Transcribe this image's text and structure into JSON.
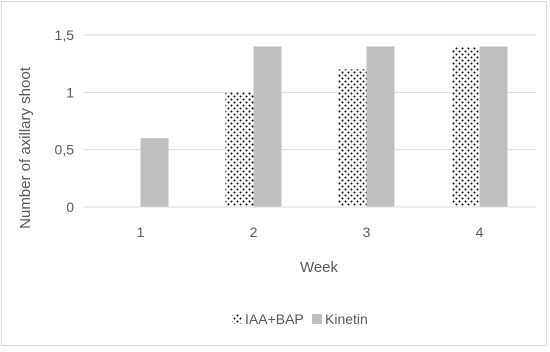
{
  "chart_data": {
    "type": "bar",
    "categories": [
      "1",
      "2",
      "3",
      "4"
    ],
    "series": [
      {
        "name": "IAA+BAP",
        "values": [
          0,
          1.0,
          1.2,
          1.4
        ],
        "pattern": "dots",
        "color": "#000000"
      },
      {
        "name": "Kinetin",
        "values": [
          0.6,
          1.4,
          1.4,
          1.4
        ],
        "pattern": "solid",
        "color": "#bfbfbf"
      }
    ],
    "xlabel": "Week",
    "ylabel": "Number of axillary shoot",
    "ylim": [
      0,
      1.5
    ],
    "yticks": [
      {
        "value": 0,
        "label": "0"
      },
      {
        "value": 0.5,
        "label": "0,5"
      },
      {
        "value": 1,
        "label": "1"
      },
      {
        "value": 1.5,
        "label": "1,5"
      }
    ],
    "grid": true,
    "legend": "bottom"
  }
}
